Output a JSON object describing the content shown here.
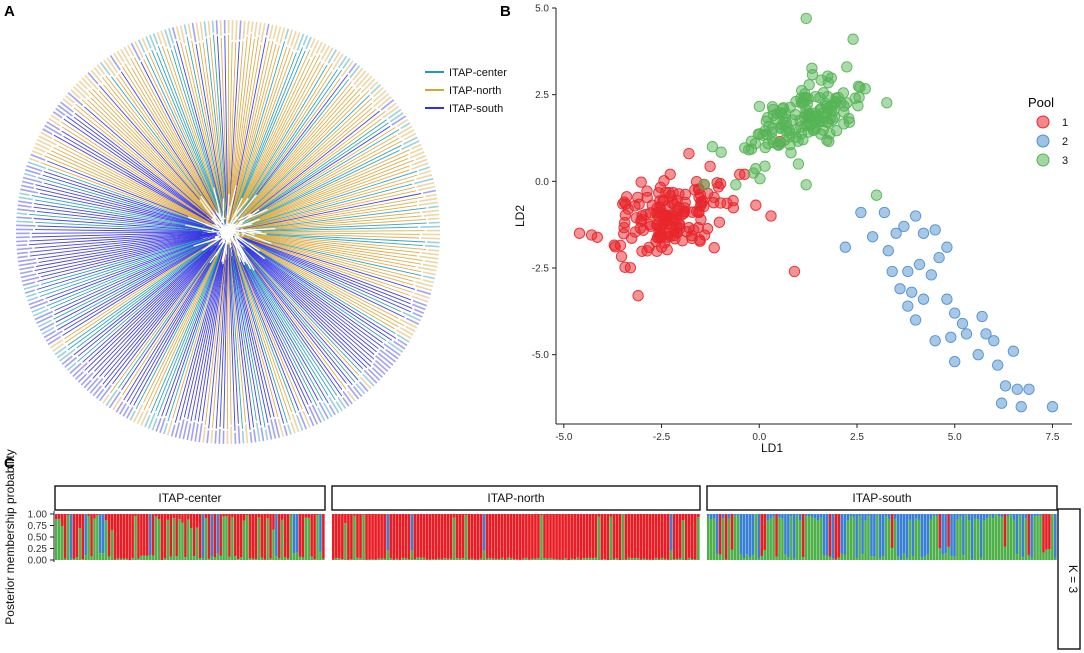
{
  "panels": {
    "a": {
      "letter": "A"
    },
    "b": {
      "letter": "B"
    },
    "c": {
      "letter": "C"
    }
  },
  "colors": {
    "itap_center": "#1f9bb5",
    "itap_north": "#d9a53a",
    "itap_south": "#3030e0",
    "pool1": "#e8262b",
    "pool2": "#4f8fd0",
    "pool3": "#55b455",
    "k_red": "#e81c24",
    "k_blue": "#3a7fd6",
    "k_green": "#4eb048"
  },
  "chart_data": [
    {
      "id": "tree",
      "type": "other",
      "description_kind": "circular phylogenetic tree",
      "legend": [
        {
          "label": "ITAP-center",
          "color": "#1f9bb5"
        },
        {
          "label": "ITAP-north",
          "color": "#d9a53a"
        },
        {
          "label": "ITAP-south",
          "color": "#3030e0"
        }
      ]
    },
    {
      "id": "lda",
      "type": "scatter",
      "xlabel": "LD1",
      "ylabel": "LD2",
      "xlim": [
        -5.2,
        8.0
      ],
      "ylim": [
        -7.0,
        5.0
      ],
      "xticks": [
        -5.0,
        -2.5,
        0.0,
        2.5,
        5.0,
        7.5
      ],
      "yticks": [
        -5.0,
        -2.5,
        0.0,
        2.5,
        5.0
      ],
      "xtick_labels": [
        "-5.0",
        "-2.5",
        "0.0",
        "2.5",
        "5.0",
        "7.5"
      ],
      "ytick_labels": [
        "-5.0",
        "-2.5",
        "0.0",
        "2.5",
        "5.0"
      ],
      "legend_title": "Pool",
      "series": [
        {
          "name": "1",
          "color": "#e8262b",
          "center": [
            -2.3,
            -1.0
          ],
          "spread": [
            1.1,
            0.85
          ],
          "n": 160,
          "extra": [
            [
              -4.6,
              -1.5
            ],
            [
              -3.1,
              -3.3
            ],
            [
              0.3,
              -1.0
            ],
            [
              0.9,
              -2.6
            ],
            [
              -0.5,
              0.2
            ],
            [
              -1.8,
              0.8
            ]
          ]
        },
        {
          "name": "2",
          "color": "#4f8fd0",
          "points": [
            [
              2.2,
              -1.9
            ],
            [
              2.6,
              -0.9
            ],
            [
              3.2,
              -0.9
            ],
            [
              3.5,
              -1.5
            ],
            [
              3.7,
              -1.3
            ],
            [
              4.0,
              -1.0
            ],
            [
              4.2,
              -1.5
            ],
            [
              4.5,
              -1.4
            ],
            [
              4.8,
              -1.9
            ],
            [
              4.6,
              -2.2
            ],
            [
              3.4,
              -2.6
            ],
            [
              3.8,
              -2.6
            ],
            [
              4.1,
              -2.4
            ],
            [
              4.4,
              -2.7
            ],
            [
              3.6,
              -3.1
            ],
            [
              3.9,
              -3.2
            ],
            [
              4.2,
              -3.4
            ],
            [
              3.8,
              -3.6
            ],
            [
              4.0,
              -4.0
            ],
            [
              4.8,
              -3.4
            ],
            [
              5.0,
              -3.8
            ],
            [
              5.2,
              -4.1
            ],
            [
              4.9,
              -4.5
            ],
            [
              5.3,
              -4.4
            ],
            [
              5.7,
              -3.9
            ],
            [
              5.8,
              -4.4
            ],
            [
              6.0,
              -4.6
            ],
            [
              5.6,
              -5.0
            ],
            [
              6.1,
              -5.3
            ],
            [
              6.5,
              -4.9
            ],
            [
              5.0,
              -5.2
            ],
            [
              6.3,
              -5.9
            ],
            [
              6.6,
              -6.0
            ],
            [
              6.9,
              -6.0
            ],
            [
              6.2,
              -6.4
            ],
            [
              6.7,
              -6.5
            ],
            [
              7.5,
              -6.5
            ],
            [
              4.5,
              -4.6
            ],
            [
              3.3,
              -2.0
            ],
            [
              2.9,
              -1.6
            ]
          ]
        },
        {
          "name": "3",
          "color": "#55b455",
          "center": [
            1.1,
            1.8
          ],
          "spread": [
            1.0,
            0.8
          ],
          "n": 150,
          "extra": [
            [
              1.2,
              4.7
            ],
            [
              2.4,
              4.1
            ],
            [
              -1.4,
              -0.1
            ],
            [
              -0.6,
              -0.1
            ],
            [
              1.2,
              -0.1
            ],
            [
              1.0,
              0.5
            ],
            [
              3.0,
              -0.4
            ],
            [
              -1.2,
              1.0
            ]
          ]
        }
      ]
    },
    {
      "id": "structure",
      "type": "bar",
      "stacked": true,
      "ylabel": "Posterior membership probability",
      "yticks": [
        0.0,
        0.25,
        0.5,
        0.75,
        1.0
      ],
      "ytick_labels": [
        "0.00",
        "0.25",
        "0.50",
        "0.75",
        "1.00"
      ],
      "right_strip": "K = 3",
      "facets": [
        {
          "label": "ITAP-center",
          "n": 92,
          "profile": "mixed"
        },
        {
          "label": "ITAP-north",
          "n": 122,
          "profile": "red"
        },
        {
          "label": "ITAP-south",
          "n": 118,
          "profile": "greenblue"
        }
      ]
    }
  ]
}
